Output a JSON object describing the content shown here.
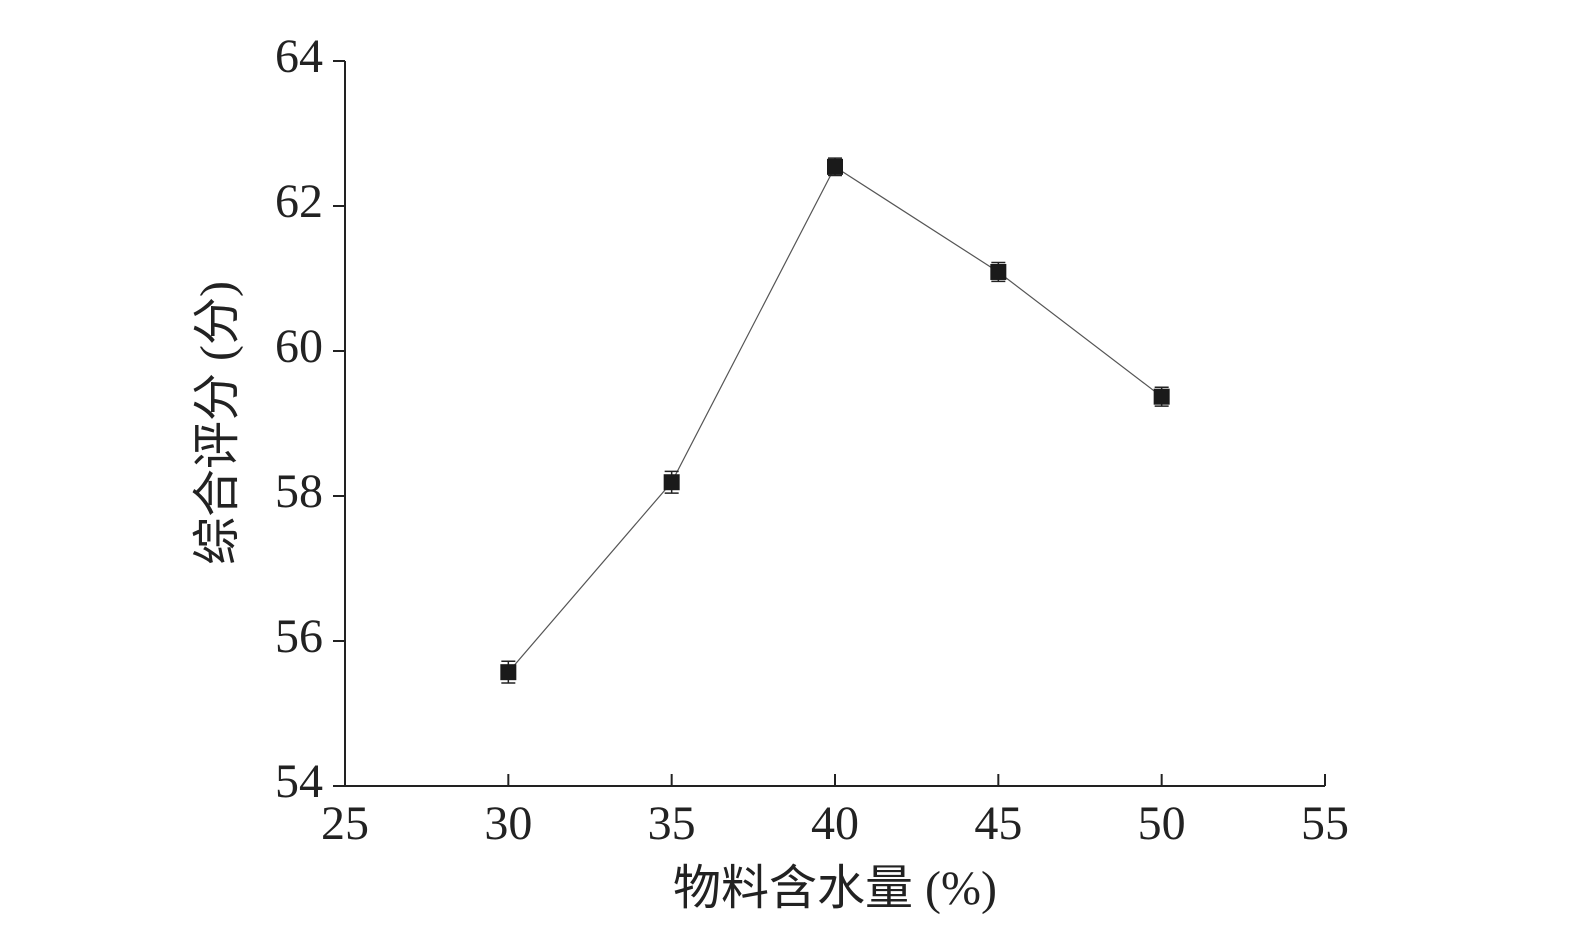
{
  "chart_data": {
    "type": "line",
    "xlabel": "物料含水量 (%)",
    "ylabel": "综合评分 (分)",
    "x": [
      30,
      35,
      40,
      45,
      50
    ],
    "values": [
      55.57,
      58.19,
      62.54,
      61.09,
      59.37
    ],
    "errors": [
      0.15,
      0.15,
      0.12,
      0.13,
      0.13
    ],
    "color": "#1a1a1a",
    "marker": "square",
    "xlim": [
      25,
      55
    ],
    "xticks": [
      25,
      30,
      35,
      40,
      45,
      50,
      55
    ],
    "ylim": [
      54,
      64
    ],
    "yticks": [
      54,
      56,
      58,
      60,
      62,
      64
    ]
  }
}
